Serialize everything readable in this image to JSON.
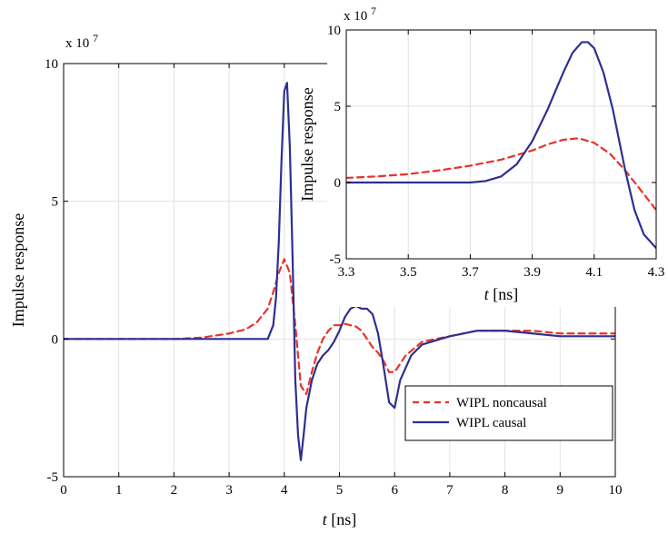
{
  "chart_data": [
    {
      "type": "line",
      "name": "main",
      "xlabel_var": "t",
      "xlabel_unit": "[ns]",
      "ylabel": "Impulse response",
      "exponent_base": "x 10",
      "exponent_power": "7",
      "xlim": [
        0,
        10
      ],
      "ylim": [
        -5,
        10
      ],
      "xticks": [
        0,
        1,
        2,
        3,
        4,
        5,
        6,
        7,
        8,
        9,
        10
      ],
      "yticks": [
        -5,
        0,
        5,
        10
      ],
      "grid": true,
      "legend": "lower-right",
      "series": [
        {
          "name": "WIPL noncausal",
          "color": "#e8322a",
          "dash": "dashed",
          "x": [
            0,
            1,
            2,
            2.5,
            3,
            3.3,
            3.5,
            3.7,
            3.8,
            3.9,
            4.0,
            4.1,
            4.2,
            4.3,
            4.4,
            4.5,
            4.6,
            4.7,
            4.8,
            4.9,
            5.0,
            5.1,
            5.2,
            5.3,
            5.4,
            5.5,
            5.6,
            5.7,
            5.8,
            5.9,
            6.0,
            6.2,
            6.5,
            7.0,
            7.5,
            8.0,
            8.5,
            9.0,
            9.5,
            10
          ],
          "y": [
            0,
            0,
            0,
            0.05,
            0.2,
            0.35,
            0.6,
            1.1,
            1.7,
            2.4,
            2.9,
            2.4,
            0.5,
            -1.7,
            -2.0,
            -1.2,
            -0.5,
            0.0,
            0.3,
            0.5,
            0.5,
            0.55,
            0.5,
            0.45,
            0.3,
            0.0,
            -0.3,
            -0.5,
            -0.8,
            -1.2,
            -1.2,
            -0.6,
            -0.1,
            0.1,
            0.3,
            0.3,
            0.3,
            0.2,
            0.2,
            0.2
          ]
        },
        {
          "name": "WIPL causal",
          "color": "#2f2f8f",
          "dash": "solid",
          "x": [
            0,
            1,
            2,
            3,
            3.5,
            3.7,
            3.8,
            3.85,
            3.9,
            3.95,
            4.0,
            4.05,
            4.1,
            4.15,
            4.2,
            4.25,
            4.3,
            4.35,
            4.4,
            4.5,
            4.6,
            4.7,
            4.8,
            4.9,
            5.0,
            5.1,
            5.2,
            5.3,
            5.4,
            5.5,
            5.6,
            5.7,
            5.8,
            5.9,
            6.0,
            6.1,
            6.3,
            6.5,
            7.0,
            7.5,
            8.0,
            8.5,
            9.0,
            9.5,
            10
          ],
          "y": [
            0,
            0,
            0,
            0,
            0,
            0.0,
            0.5,
            1.5,
            3.5,
            6.5,
            9.0,
            9.3,
            7.0,
            3.0,
            -1.5,
            -3.5,
            -4.4,
            -3.5,
            -2.5,
            -1.5,
            -0.9,
            -0.6,
            -0.4,
            -0.1,
            0.3,
            0.8,
            1.1,
            1.2,
            1.1,
            1.1,
            0.9,
            0.2,
            -1.0,
            -2.3,
            -2.5,
            -1.5,
            -0.6,
            -0.2,
            0.1,
            0.3,
            0.3,
            0.2,
            0.1,
            0.1,
            0.1
          ]
        }
      ]
    },
    {
      "type": "line",
      "name": "inset",
      "xlabel_var": "t",
      "xlabel_unit": "[ns]",
      "ylabel": "Impulse response",
      "exponent_base": "x 10",
      "exponent_power": "7",
      "xlim": [
        3.3,
        4.3
      ],
      "ylim": [
        -5,
        10
      ],
      "xticks": [
        3.3,
        3.5,
        3.7,
        3.9,
        4.1,
        4.3
      ],
      "yticks": [
        -5,
        0,
        5,
        10
      ],
      "grid": true,
      "series": [
        {
          "name": "WIPL noncausal",
          "color": "#e8322a",
          "dash": "dashed",
          "x": [
            3.3,
            3.4,
            3.5,
            3.6,
            3.7,
            3.8,
            3.9,
            3.95,
            4.0,
            4.05,
            4.1,
            4.15,
            4.2,
            4.25,
            4.3
          ],
          "y": [
            0.3,
            0.4,
            0.55,
            0.8,
            1.1,
            1.5,
            2.1,
            2.5,
            2.8,
            2.9,
            2.6,
            1.9,
            0.8,
            -0.5,
            -1.8
          ]
        },
        {
          "name": "WIPL causal",
          "color": "#2f2f8f",
          "dash": "solid",
          "x": [
            3.3,
            3.5,
            3.7,
            3.75,
            3.8,
            3.85,
            3.9,
            3.95,
            4.0,
            4.03,
            4.06,
            4.08,
            4.1,
            4.13,
            4.16,
            4.2,
            4.23,
            4.26,
            4.3
          ],
          "y": [
            0,
            0,
            0,
            0.1,
            0.4,
            1.2,
            2.7,
            4.8,
            7.2,
            8.5,
            9.2,
            9.2,
            8.8,
            7.2,
            4.8,
            0.8,
            -1.8,
            -3.4,
            -4.3
          ]
        }
      ]
    }
  ]
}
